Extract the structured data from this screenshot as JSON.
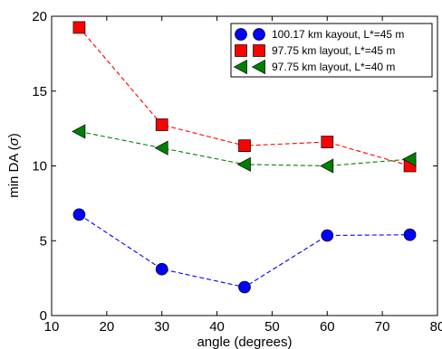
{
  "chart_data": {
    "type": "line",
    "xlabel": "angle (degrees)",
    "ylabel_main": "min DA (",
    "ylabel_sigma": "σ",
    "ylabel_close": ")",
    "xlim": [
      10,
      80
    ],
    "ylim": [
      0,
      20
    ],
    "x_ticks": [
      "10",
      "20",
      "30",
      "40",
      "50",
      "60",
      "70",
      "80"
    ],
    "y_ticks": [
      "0",
      "5",
      "10",
      "15",
      "20"
    ],
    "grid": false,
    "legend_position": "top-right",
    "x": [
      15,
      30,
      45,
      60,
      75
    ],
    "series": [
      {
        "name": "100.17 km kayout, L*=45 m",
        "marker": "circle",
        "color": "#0000ff",
        "values": [
          6.75,
          3.1,
          1.9,
          5.35,
          5.4
        ]
      },
      {
        "name": "97.75 km layout, L*=45 m",
        "marker": "square",
        "color": "#ff0000",
        "values": [
          19.25,
          12.75,
          11.35,
          11.6,
          10.0
        ]
      },
      {
        "name": "97.75 km layout, L*=40 m",
        "marker": "triangle-left",
        "color": "#008000",
        "values": [
          12.3,
          11.2,
          10.1,
          10.0,
          10.45
        ]
      }
    ]
  }
}
